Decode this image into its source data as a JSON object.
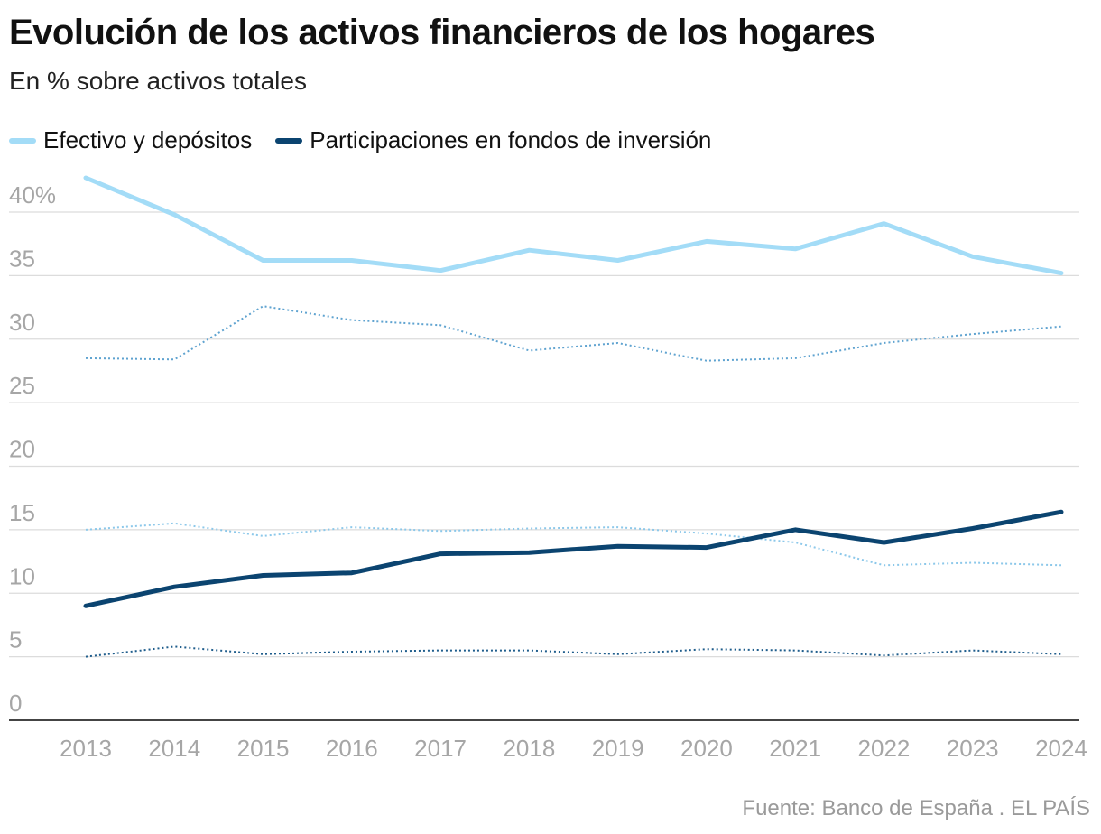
{
  "header": {
    "title": "Evolución de los activos financieros de los hogares",
    "subtitle": "En % sobre activos totales"
  },
  "legend": [
    {
      "label": "Efectivo y depósitos",
      "color": "#a3dcf7"
    },
    {
      "label": "Participaciones en fondos de inversión",
      "color": "#0b4470"
    }
  ],
  "footer": {
    "source": "Fuente: Banco de España . EL PAÍS"
  },
  "chart_data": {
    "type": "line",
    "title": "Evolución de los activos financieros de los hogares",
    "subtitle": "En % sobre activos totales",
    "xlabel": "",
    "ylabel": "",
    "ylim": [
      0,
      40
    ],
    "y_ticks": [
      0,
      5,
      10,
      15,
      20,
      25,
      30,
      35,
      40
    ],
    "y_tick_labels": [
      "0",
      "5",
      "10",
      "15",
      "20",
      "25",
      "30",
      "35",
      "40%"
    ],
    "categories": [
      "2013",
      "2014",
      "2015",
      "2016",
      "2017",
      "2018",
      "2019",
      "2020",
      "2021",
      "2022",
      "2023",
      "2024"
    ],
    "grid": true,
    "legend_position": "top-left",
    "series": [
      {
        "name": "Efectivo y depósitos",
        "style": "solid-thick",
        "color": "#a3dcf7",
        "values": [
          42.7,
          39.8,
          36.2,
          36.2,
          35.4,
          37.0,
          36.2,
          37.7,
          37.1,
          39.1,
          36.5,
          35.2
        ]
      },
      {
        "name": "Participaciones en fondos de inversión",
        "style": "solid-thick",
        "color": "#0b4470",
        "values": [
          9.0,
          10.5,
          11.4,
          11.6,
          13.1,
          13.2,
          13.7,
          13.6,
          15.0,
          14.0,
          15.1,
          16.4
        ]
      },
      {
        "name": "",
        "style": "dotted",
        "color": "#5fa3d0",
        "values": [
          28.5,
          28.4,
          32.6,
          31.5,
          31.1,
          29.1,
          29.7,
          28.3,
          28.5,
          29.7,
          30.4,
          31.0
        ]
      },
      {
        "name": "",
        "style": "dotted",
        "color": "#8cc8ea",
        "values": [
          15.0,
          15.5,
          14.5,
          15.2,
          14.9,
          15.1,
          15.2,
          14.7,
          14.0,
          12.2,
          12.4,
          12.2
        ]
      },
      {
        "name": "",
        "style": "dotted",
        "color": "#1f5d8c",
        "values": [
          5.0,
          5.8,
          5.2,
          5.4,
          5.5,
          5.5,
          5.2,
          5.6,
          5.5,
          5.1,
          5.5,
          5.2
        ]
      }
    ]
  }
}
